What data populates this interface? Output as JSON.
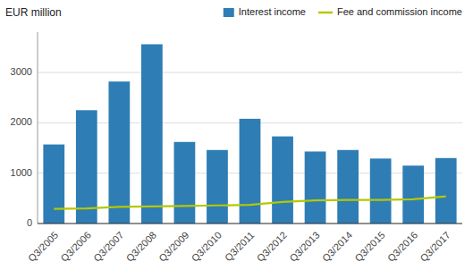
{
  "chart_data": {
    "type": "bar",
    "ylabel": "EUR million",
    "categories": [
      "Q3/2005",
      "Q3/2006",
      "Q3/2007",
      "Q3/2008",
      "Q3/2009",
      "Q3/2010",
      "Q3/2011",
      "Q3/2012",
      "Q3/2013",
      "Q3/2014",
      "Q3/2015",
      "Q3/2016",
      "Q3/2017"
    ],
    "series": [
      {
        "name": "Interest income",
        "type": "bar",
        "color": "#2e7db5",
        "values": [
          1570,
          2250,
          2820,
          3560,
          1620,
          1460,
          2080,
          1730,
          1430,
          1460,
          1290,
          1150,
          1300
        ]
      },
      {
        "name": "Fee and commission income",
        "type": "line",
        "color": "#b5c800",
        "values": [
          290,
          300,
          330,
          340,
          350,
          360,
          370,
          430,
          460,
          470,
          470,
          480,
          540
        ]
      }
    ],
    "ylim": [
      0,
      3800
    ],
    "yticks": [
      0,
      1000,
      2000,
      3000
    ],
    "grid": true,
    "legend": "top-right"
  }
}
